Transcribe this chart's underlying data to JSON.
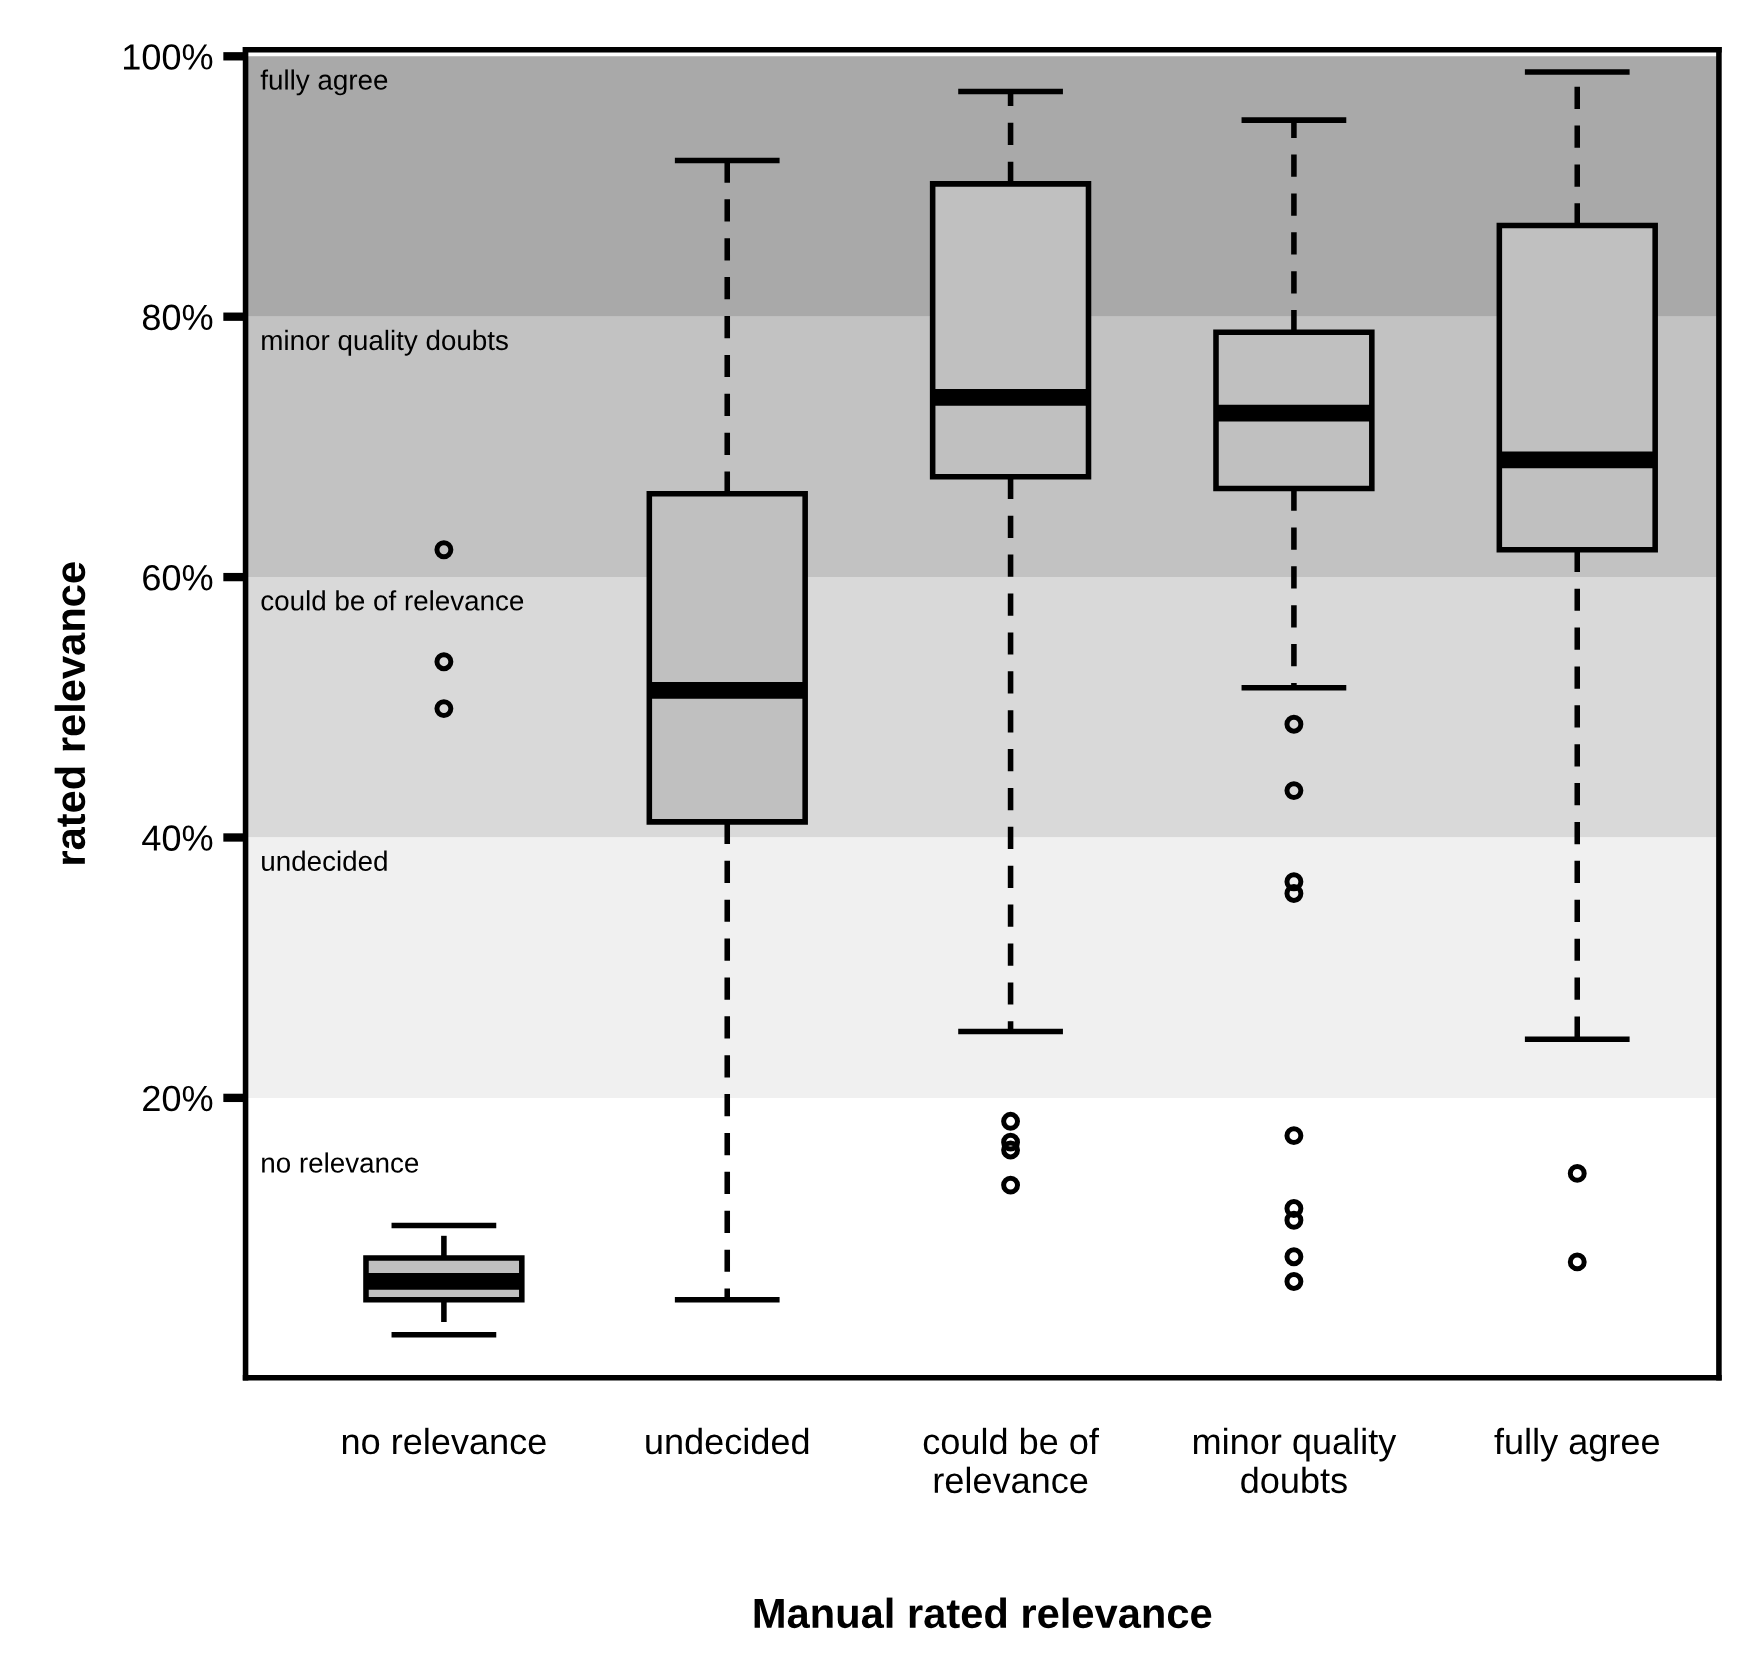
{
  "chart_data": {
    "type": "box",
    "xlabel": "Manual rated relevance",
    "ylabel": "rated relevance",
    "categories": [
      "no relevance",
      "undecided",
      "could be of\nrelevance",
      "minor quality\ndoubts",
      "fully agree"
    ],
    "color": "#c0c0c0",
    "boxes": [
      {
        "low": 1.8,
        "q1": 4.5,
        "median": 5.9,
        "q3": 7.7,
        "high": 10.2,
        "outliers": [
          62.1,
          53.5,
          49.9
        ]
      },
      {
        "low": 4.5,
        "q1": 41.2,
        "median": 51.3,
        "q3": 66.4,
        "high": 92.0
      },
      {
        "low": 25.1,
        "q1": 67.7,
        "median": 73.8,
        "q3": 90.2,
        "high": 97.3,
        "outliers": [
          18.2,
          16.6,
          16.0,
          13.3
        ]
      },
      {
        "low": 51.5,
        "q1": 66.8,
        "median": 72.6,
        "q3": 78.8,
        "high": 95.1,
        "outliers": [
          48.7,
          43.6,
          36.6,
          35.7,
          17.1,
          11.5,
          10.6,
          7.8,
          5.9
        ]
      },
      {
        "low": 24.5,
        "q1": 62.1,
        "median": 69.0,
        "q3": 87.0,
        "high": 98.8,
        "outliers": [
          14.2,
          7.4
        ]
      }
    ],
    "ylim": [
      -1.5,
      100.5
    ],
    "yticks": [
      {
        "value": 20,
        "label": "20%"
      },
      {
        "value": 40,
        "label": "40%"
      },
      {
        "value": 60,
        "label": "60%"
      },
      {
        "value": 80,
        "label": "80%"
      },
      {
        "value": 100,
        "label": "100%"
      }
    ],
    "bands": [
      {
        "axis": "y",
        "from": 80,
        "to": 100,
        "label": "fully agree",
        "color": "#a9a9a9"
      },
      {
        "axis": "y",
        "from": 60,
        "to": 80,
        "label": "minor quality doubts",
        "color": "#c2c2c2"
      },
      {
        "axis": "y",
        "from": 40,
        "to": 60,
        "label": "could be of relevance",
        "color": "#d9d9d9"
      },
      {
        "axis": "y",
        "from": 20,
        "to": 40,
        "label": "undecided",
        "color": "#f0f0f0"
      }
    ],
    "annotations": [
      "no relevance"
    ],
    "grid": false,
    "legend": false
  }
}
